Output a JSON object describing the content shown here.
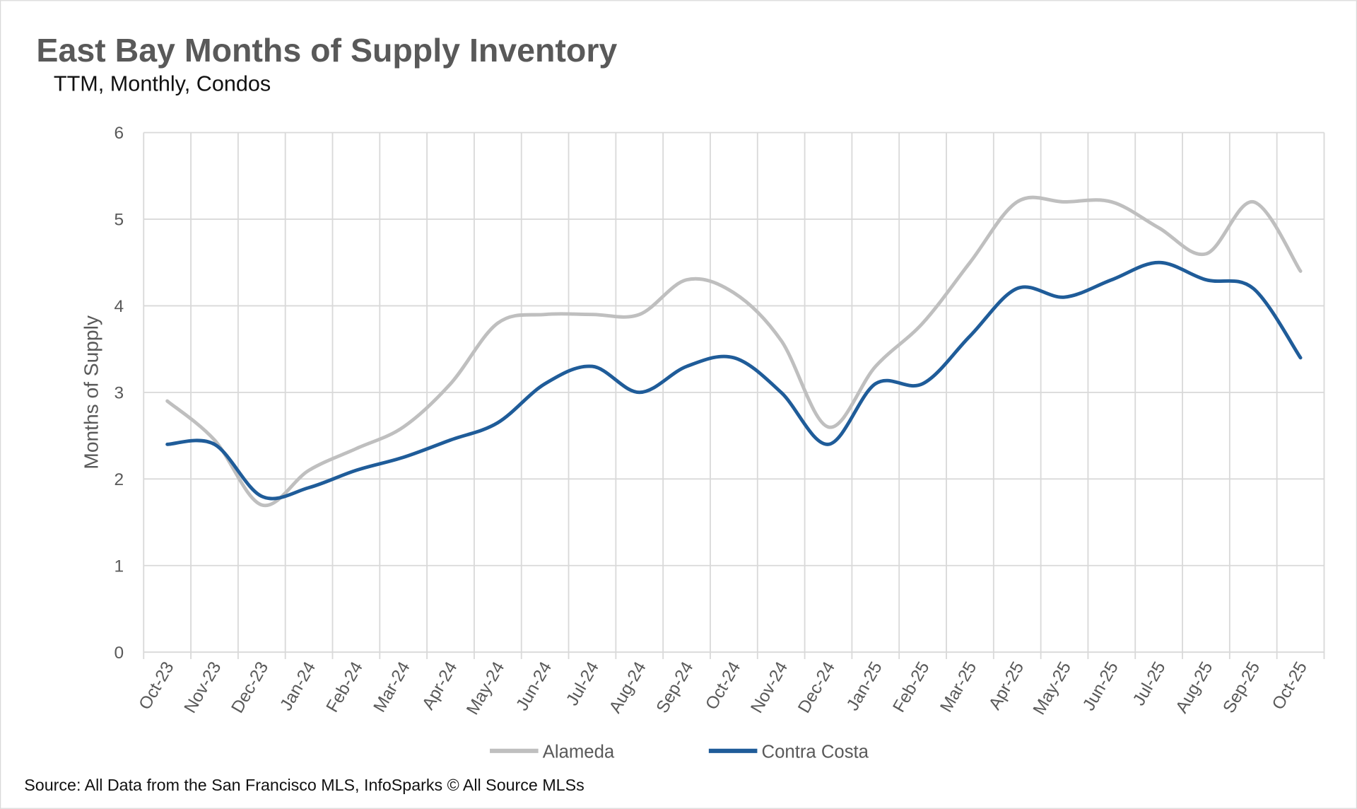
{
  "chart_data": {
    "type": "line",
    "title": "East Bay Months of Supply Inventory",
    "subtitle": "TTM, Monthly, Condos",
    "ylabel": "Months of Supply",
    "xlabel": "",
    "ylim": [
      0,
      6
    ],
    "yticks": [
      "0",
      "1",
      "2",
      "3",
      "4",
      "5",
      "6"
    ],
    "grid": true,
    "smooth": true,
    "legend_position": "bottom",
    "categories": [
      "Oct-23",
      "Nov-23",
      "Dec-23",
      "Jan-24",
      "Feb-24",
      "Mar-24",
      "Apr-24",
      "May-24",
      "Jun-24",
      "Jul-24",
      "Aug-24",
      "Sep-24",
      "Oct-24",
      "Nov-24",
      "Dec-24",
      "Jan-25",
      "Feb-25",
      "Mar-25",
      "Apr-25",
      "May-25",
      "Jun-25",
      "Jul-25",
      "Aug-25",
      "Sep-25",
      "Oct-25"
    ],
    "series": [
      {
        "name": "Alameda",
        "color": "#BFBFBF",
        "values": [
          2.9,
          2.45,
          1.7,
          2.1,
          2.35,
          2.6,
          3.1,
          3.8,
          3.9,
          3.9,
          3.9,
          4.3,
          4.15,
          3.6,
          2.6,
          3.3,
          3.8,
          4.5,
          5.2,
          5.2,
          5.2,
          4.9,
          4.6,
          5.2,
          4.4
        ]
      },
      {
        "name": "Contra Costa",
        "color": "#1F5C99",
        "values": [
          2.4,
          2.4,
          1.8,
          1.9,
          2.1,
          2.25,
          2.45,
          2.65,
          3.1,
          3.3,
          3.0,
          3.3,
          3.4,
          3.0,
          2.4,
          3.1,
          3.1,
          3.65,
          4.2,
          4.1,
          4.3,
          4.5,
          4.3,
          4.2,
          3.4
        ]
      }
    ],
    "source": "Source: All Data from the San Francisco MLS, InfoSparks © All Source MLSs"
  }
}
